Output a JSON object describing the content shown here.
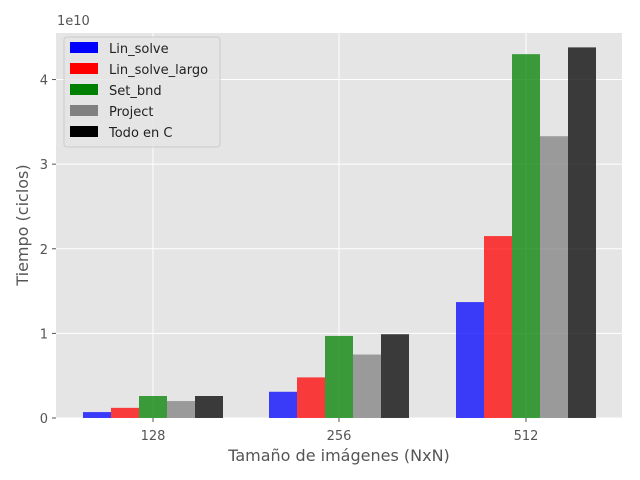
{
  "chart_data": {
    "type": "bar",
    "categories": [
      "128",
      "256",
      "512"
    ],
    "series": [
      {
        "name": "Lin_solve",
        "color": "#0000ff",
        "values": [
          0.07,
          0.31,
          1.37
        ]
      },
      {
        "name": "Lin_solve_largo",
        "color": "#ff0000",
        "values": [
          0.12,
          0.48,
          2.15
        ]
      },
      {
        "name": "Set_bnd",
        "color": "#008000",
        "values": [
          0.26,
          0.97,
          4.3
        ]
      },
      {
        "name": "Project",
        "color": "#808080",
        "values": [
          0.2,
          0.75,
          3.33
        ]
      },
      {
        "name": "Todo en C",
        "color": "#000000",
        "values": [
          0.26,
          0.99,
          4.38
        ]
      }
    ],
    "xlabel": "Tamaño de imágenes (NxN)",
    "ylabel": "Tiempo (ciclos)",
    "y_multiplier": "1e10",
    "yticks": [
      "0",
      "1",
      "2",
      "3",
      "4"
    ],
    "ylim": [
      0,
      4.55
    ],
    "legend_position": "upper-left",
    "grid": true
  }
}
